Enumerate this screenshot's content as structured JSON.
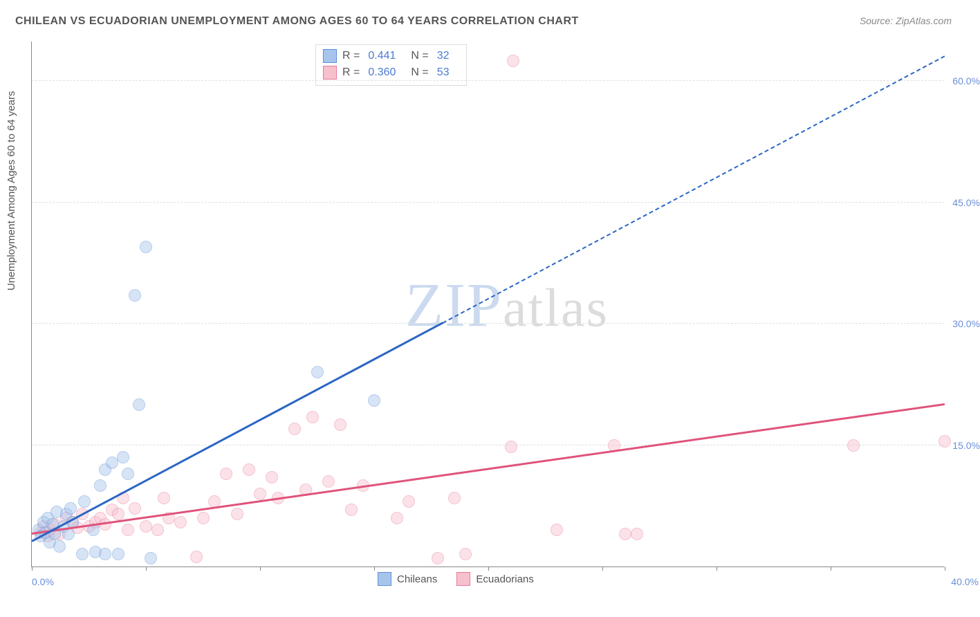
{
  "title": "CHILEAN VS ECUADORIAN UNEMPLOYMENT AMONG AGES 60 TO 64 YEARS CORRELATION CHART",
  "source": "Source: ZipAtlas.com",
  "ylabel": "Unemployment Among Ages 60 to 64 years",
  "watermark": {
    "zip": "ZIP",
    "atlas": "atlas"
  },
  "chart": {
    "type": "scatter-correlation",
    "background_color": "#ffffff",
    "grid_color": "#e0e0e0",
    "axis_color": "#888888",
    "tick_label_color": "#6a8fd8",
    "font_family": "Arial",
    "title_fontsize": 16,
    "ylabel_fontsize": 15,
    "tick_fontsize": 14,
    "legend_fontsize": 15,
    "xlim": [
      0,
      40
    ],
    "ylim": [
      0,
      65
    ],
    "x_ticks": [
      0,
      5,
      10,
      15,
      20,
      25,
      30,
      35,
      40
    ],
    "x_tick_labels": {
      "0": "0.0%",
      "40": "40.0%"
    },
    "y_ticks": [
      15,
      30,
      45,
      60
    ],
    "y_tick_labels": [
      "15.0%",
      "30.0%",
      "45.0%",
      "60.0%"
    ],
    "marker_radius": 9,
    "marker_opacity": 0.45,
    "marker_border_width": 1.5,
    "trend_line_width": 2.5
  },
  "series": {
    "chileans": {
      "label": "Chileans",
      "fill_color": "#a7c5ec",
      "stroke_color": "#5b8fd6",
      "trend_color": "#2b66c4",
      "trend_start": [
        0,
        3
      ],
      "trend_end_solid": [
        18,
        30
      ],
      "trend_end_dashed": [
        40,
        63
      ],
      "r": "0.441",
      "n": "32",
      "points": [
        [
          0.3,
          4.5
        ],
        [
          0.4,
          3.8
        ],
        [
          0.5,
          5.5
        ],
        [
          0.6,
          4.2
        ],
        [
          0.7,
          6.0
        ],
        [
          0.8,
          3.0
        ],
        [
          0.9,
          5.2
        ],
        [
          1.0,
          4.0
        ],
        [
          1.1,
          6.8
        ],
        [
          1.2,
          2.5
        ],
        [
          1.4,
          5.0
        ],
        [
          1.5,
          6.5
        ],
        [
          1.6,
          4.0
        ],
        [
          1.7,
          7.2
        ],
        [
          1.8,
          5.5
        ],
        [
          2.2,
          1.5
        ],
        [
          2.3,
          8.0
        ],
        [
          2.7,
          4.5
        ],
        [
          2.8,
          1.8
        ],
        [
          3.0,
          10.0
        ],
        [
          3.2,
          12.0
        ],
        [
          3.2,
          1.5
        ],
        [
          3.5,
          12.8
        ],
        [
          3.8,
          1.5
        ],
        [
          4.0,
          13.5
        ],
        [
          4.2,
          11.5
        ],
        [
          4.5,
          33.5
        ],
        [
          4.7,
          20.0
        ],
        [
          5.0,
          39.5
        ],
        [
          5.2,
          1.0
        ],
        [
          12.5,
          24.0
        ],
        [
          15.0,
          20.5
        ]
      ]
    },
    "ecuadorians": {
      "label": "Ecuadorians",
      "fill_color": "#f7c0cd",
      "stroke_color": "#e77a98",
      "trend_color": "#e0527a",
      "trend_start": [
        0,
        4
      ],
      "trend_end_solid": [
        40,
        20
      ],
      "r": "0.360",
      "n": "53",
      "points": [
        [
          0.4,
          4.2
        ],
        [
          0.5,
          5.0
        ],
        [
          0.7,
          3.8
        ],
        [
          0.8,
          4.5
        ],
        [
          1.0,
          5.2
        ],
        [
          1.2,
          4.0
        ],
        [
          1.5,
          6.0
        ],
        [
          1.8,
          5.5
        ],
        [
          2.0,
          4.8
        ],
        [
          2.2,
          6.5
        ],
        [
          2.5,
          5.0
        ],
        [
          2.8,
          5.5
        ],
        [
          3.0,
          6.0
        ],
        [
          3.2,
          5.2
        ],
        [
          3.5,
          7.0
        ],
        [
          3.8,
          6.5
        ],
        [
          4.0,
          8.5
        ],
        [
          4.2,
          4.5
        ],
        [
          4.5,
          7.2
        ],
        [
          5.0,
          5.0
        ],
        [
          5.5,
          4.5
        ],
        [
          5.8,
          8.5
        ],
        [
          6.0,
          6.0
        ],
        [
          6.5,
          5.5
        ],
        [
          7.2,
          1.2
        ],
        [
          7.5,
          6.0
        ],
        [
          8.0,
          8.0
        ],
        [
          8.5,
          11.5
        ],
        [
          9.0,
          6.5
        ],
        [
          9.5,
          12.0
        ],
        [
          10.0,
          9.0
        ],
        [
          10.5,
          11.0
        ],
        [
          10.8,
          8.5
        ],
        [
          11.5,
          17.0
        ],
        [
          12.0,
          9.5
        ],
        [
          12.3,
          18.5
        ],
        [
          13.0,
          10.5
        ],
        [
          13.5,
          17.5
        ],
        [
          14.0,
          7.0
        ],
        [
          14.5,
          10.0
        ],
        [
          16.0,
          6.0
        ],
        [
          16.5,
          8.0
        ],
        [
          17.8,
          1.0
        ],
        [
          18.5,
          8.5
        ],
        [
          19.0,
          1.5
        ],
        [
          21.0,
          14.8
        ],
        [
          21.1,
          62.5
        ],
        [
          23.0,
          4.5
        ],
        [
          25.5,
          15.0
        ],
        [
          26.0,
          4.0
        ],
        [
          26.5,
          4.0
        ],
        [
          36.0,
          15.0
        ],
        [
          40.0,
          15.5
        ]
      ]
    }
  },
  "stats_labels": {
    "r": "R  =",
    "n": "N  ="
  }
}
